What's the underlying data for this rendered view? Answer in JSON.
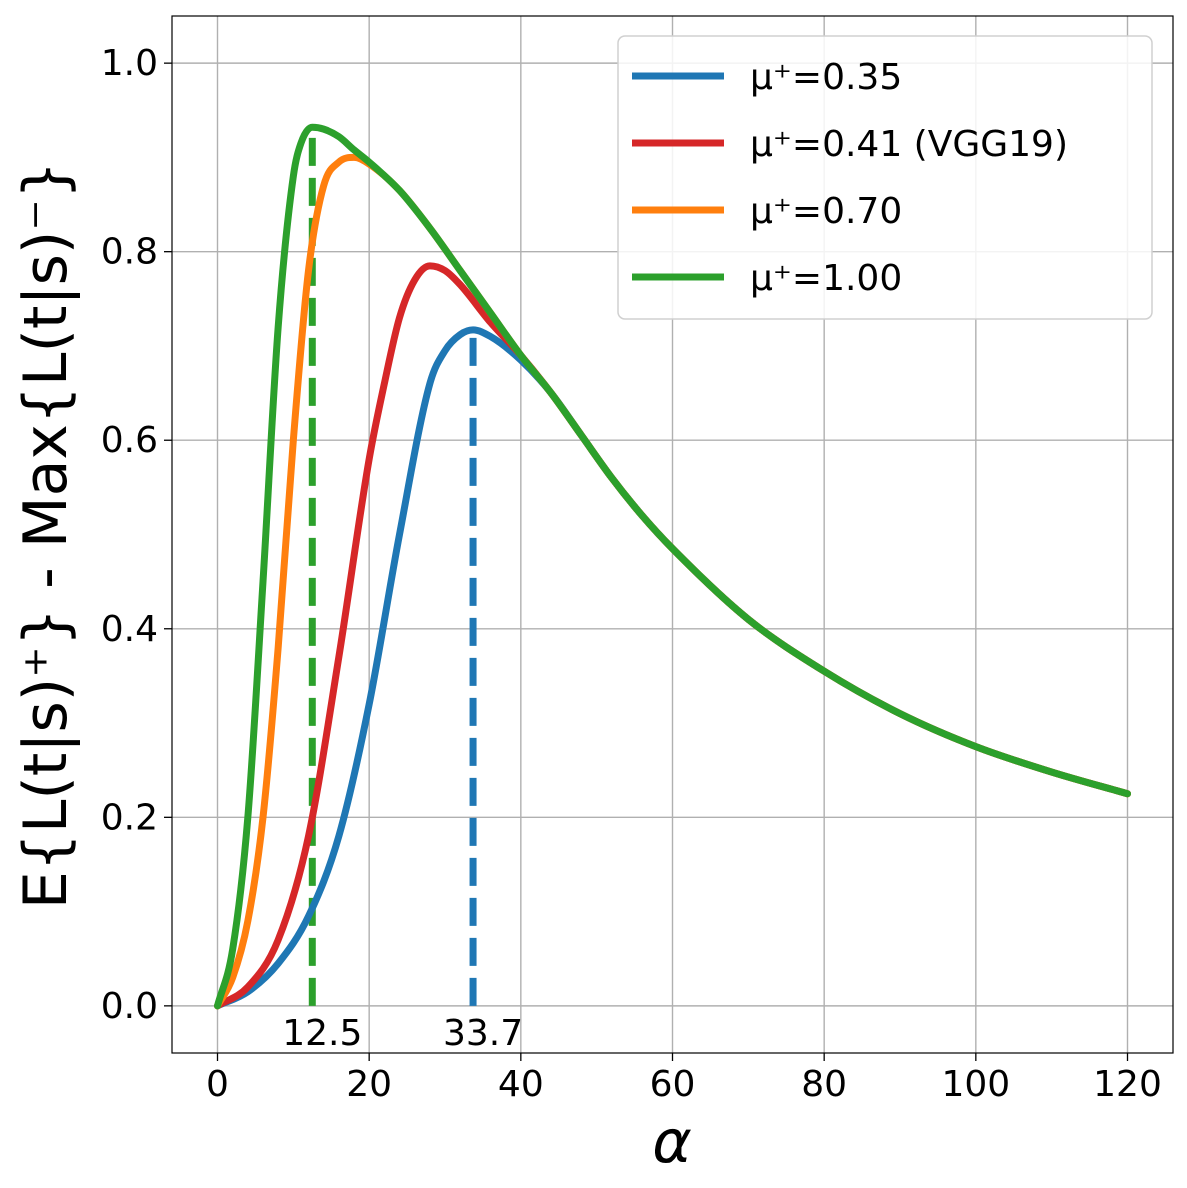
{
  "chart_data": {
    "type": "line",
    "title": "",
    "xlabel": "α",
    "ylabel": "E{L(t|s)⁺} - Max{L(t|s)⁻}",
    "xlim": [
      -6,
      126
    ],
    "ylim": [
      -0.05,
      1.05
    ],
    "xticks": [
      0,
      20,
      40,
      60,
      80,
      100,
      120
    ],
    "xtick_labels": [
      "0",
      "20",
      "40",
      "60",
      "80",
      "100",
      "120"
    ],
    "yticks": [
      0.0,
      0.2,
      0.4,
      0.6,
      0.8,
      1.0
    ],
    "ytick_labels": [
      "0.0",
      "0.2",
      "0.4",
      "0.6",
      "0.8",
      "1.0"
    ],
    "grid": true,
    "legend_position": "top-right",
    "series": [
      {
        "name": "μ⁺=0.35",
        "color": "#1f77b4",
        "x": [
          0,
          4,
          8,
          12,
          16,
          20,
          24,
          28,
          30,
          32,
          33.7,
          36,
          40,
          44,
          48,
          52,
          56,
          60,
          70,
          80,
          90,
          100,
          110,
          120
        ],
        "y": [
          0.0,
          0.015,
          0.045,
          0.095,
          0.18,
          0.32,
          0.5,
          0.66,
          0.695,
          0.712,
          0.717,
          0.71,
          0.685,
          0.65,
          0.605,
          0.56,
          0.52,
          0.485,
          0.41,
          0.355,
          0.31,
          0.275,
          0.248,
          0.225
        ]
      },
      {
        "name": "μ⁺=0.41 (VGG19)",
        "color": "#d62728",
        "x": [
          0,
          4,
          8,
          12,
          16,
          20,
          22,
          24,
          26,
          28,
          30,
          32,
          36,
          40,
          44,
          48,
          52,
          56,
          60,
          70,
          80,
          90,
          100,
          110,
          120
        ],
        "y": [
          0.0,
          0.02,
          0.07,
          0.18,
          0.37,
          0.58,
          0.66,
          0.73,
          0.77,
          0.785,
          0.78,
          0.765,
          0.725,
          0.69,
          0.65,
          0.605,
          0.56,
          0.52,
          0.485,
          0.41,
          0.355,
          0.31,
          0.275,
          0.248,
          0.225
        ]
      },
      {
        "name": "μ⁺=0.70",
        "color": "#ff7f0e",
        "x": [
          0,
          2,
          4,
          6,
          8,
          10,
          12,
          14,
          16,
          18,
          20,
          24,
          28,
          32,
          36,
          40,
          44,
          48,
          52,
          56,
          60,
          70,
          80,
          90,
          100,
          110,
          120
        ],
        "y": [
          0.0,
          0.03,
          0.09,
          0.2,
          0.38,
          0.6,
          0.78,
          0.87,
          0.895,
          0.9,
          0.893,
          0.865,
          0.825,
          0.78,
          0.735,
          0.69,
          0.65,
          0.605,
          0.56,
          0.52,
          0.485,
          0.41,
          0.355,
          0.31,
          0.275,
          0.248,
          0.225
        ]
      },
      {
        "name": "μ⁺=1.00",
        "color": "#2ca02c",
        "x": [
          0,
          2,
          4,
          6,
          8,
          10,
          11,
          12.5,
          14,
          16,
          18,
          20,
          24,
          28,
          32,
          36,
          40,
          44,
          48,
          52,
          56,
          60,
          70,
          80,
          90,
          100,
          110,
          120
        ],
        "y": [
          0.0,
          0.06,
          0.2,
          0.45,
          0.72,
          0.88,
          0.915,
          0.932,
          0.93,
          0.922,
          0.908,
          0.895,
          0.865,
          0.825,
          0.78,
          0.735,
          0.69,
          0.65,
          0.605,
          0.56,
          0.52,
          0.485,
          0.41,
          0.355,
          0.31,
          0.275,
          0.248,
          0.225
        ]
      }
    ],
    "vlines": [
      {
        "x": 12.5,
        "y_top": 0.932,
        "color": "#2ca02c",
        "label": "12.5"
      },
      {
        "x": 33.7,
        "y_top": 0.717,
        "color": "#1f77b4",
        "label": "33.7"
      }
    ]
  }
}
